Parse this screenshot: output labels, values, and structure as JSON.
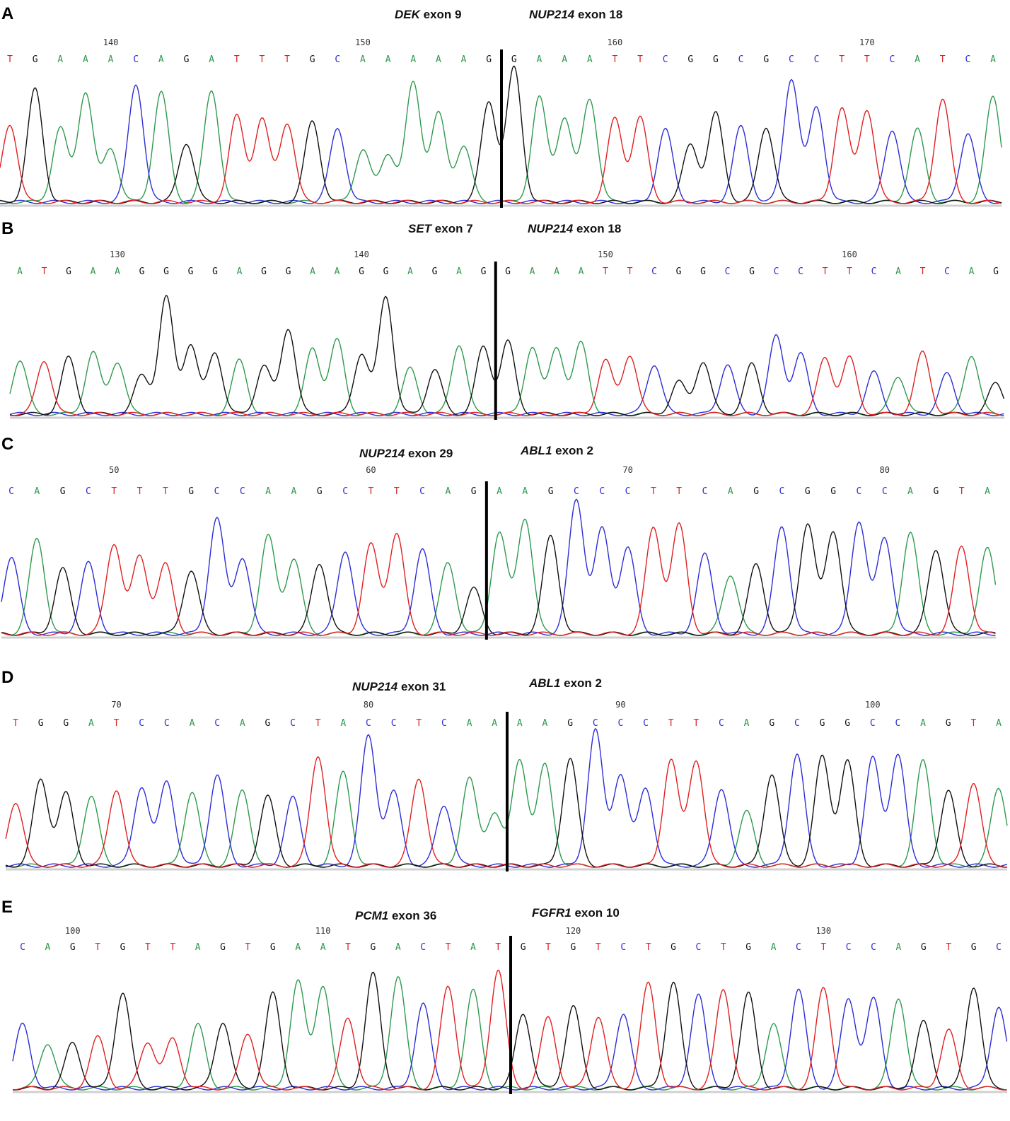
{
  "colors": {
    "A": "#2e9a4e",
    "C": "#2d2dd6",
    "G": "#111111",
    "T": "#e02020",
    "junction": "#000000",
    "baseline_shade": "#d0d0d0"
  },
  "chart_data": [
    {
      "type": "chromatogram",
      "panel": "A",
      "gene_left": "DEK",
      "exon_left": "exon 9",
      "gene_right": "NUP214",
      "exon_right": "exon 18",
      "first_position": 136,
      "position_ticks": [
        140,
        150,
        160,
        170
      ],
      "sequence": [
        "T",
        "G",
        "A",
        "A",
        "A",
        "C",
        "A",
        "G",
        "A",
        "T",
        "T",
        "T",
        "G",
        "C",
        "A",
        "A",
        "A",
        "A",
        "A",
        "G",
        "G",
        "A",
        "A",
        "A",
        "T",
        "T",
        "C",
        "G",
        "G",
        "C",
        "G",
        "C",
        "C",
        "T",
        "T",
        "C",
        "A",
        "T",
        "C",
        "A"
      ],
      "junction_after_index": 19,
      "peak_heights": [
        0.58,
        0.84,
        0.55,
        0.82,
        0.4,
        0.88,
        0.82,
        0.44,
        0.83,
        0.64,
        0.62,
        0.59,
        0.6,
        0.55,
        0.39,
        0.36,
        0.89,
        0.66,
        0.42,
        0.75,
        1.0,
        0.78,
        0.63,
        0.77,
        0.62,
        0.63,
        0.54,
        0.43,
        0.66,
        0.56,
        0.56,
        0.92,
        0.71,
        0.7,
        0.69,
        0.54,
        0.54,
        0.77,
        0.51,
        0.78
      ]
    },
    {
      "type": "chromatogram",
      "panel": "B",
      "gene_left": "SET",
      "exon_left": "exon 7",
      "gene_right": "NUP214",
      "exon_right": "exon 18",
      "first_position": 126,
      "position_ticks": [
        130,
        140,
        150,
        160
      ],
      "sequence": [
        "A",
        "T",
        "G",
        "A",
        "A",
        "G",
        "G",
        "G",
        "G",
        "A",
        "G",
        "G",
        "A",
        "A",
        "G",
        "G",
        "A",
        "G",
        "A",
        "G",
        "G",
        "A",
        "A",
        "A",
        "T",
        "T",
        "C",
        "G",
        "G",
        "C",
        "G",
        "C",
        "C",
        "T",
        "T",
        "C",
        "A",
        "T",
        "C",
        "A",
        "G"
      ],
      "junction_after_index": 19,
      "peak_heights": [
        0.4,
        0.4,
        0.42,
        0.46,
        0.39,
        0.29,
        0.87,
        0.52,
        0.46,
        0.4,
        0.36,
        0.64,
        0.49,
        0.55,
        0.45,
        0.88,
        0.34,
        0.33,
        0.52,
        0.5,
        0.54,
        0.5,
        0.5,
        0.53,
        0.4,
        0.44,
        0.37,
        0.24,
        0.39,
        0.37,
        0.37,
        0.58,
        0.45,
        0.42,
        0.42,
        0.31,
        0.28,
        0.46,
        0.3,
        0.44,
        0.23
      ]
    },
    {
      "type": "chromatogram",
      "panel": "C",
      "gene_left": "NUP214",
      "exon_left": "exon 29",
      "gene_right": "ABL1",
      "exon_right": "exon 2",
      "first_position": 46,
      "position_ticks": [
        50,
        60,
        70,
        80
      ],
      "sequence": [
        "C",
        "A",
        "G",
        "C",
        "T",
        "T",
        "T",
        "G",
        "C",
        "C",
        "A",
        "A",
        "G",
        "C",
        "T",
        "T",
        "C",
        "A",
        "G",
        "A",
        "A",
        "G",
        "C",
        "C",
        "C",
        "T",
        "T",
        "C",
        "A",
        "G",
        "C",
        "G",
        "G",
        "C",
        "C",
        "A",
        "G",
        "T",
        "A"
      ],
      "junction_after_index": 18,
      "peak_heights": [
        0.54,
        0.67,
        0.46,
        0.5,
        0.64,
        0.55,
        0.49,
        0.45,
        0.82,
        0.54,
        0.69,
        0.53,
        0.5,
        0.59,
        0.63,
        0.71,
        0.6,
        0.5,
        0.32,
        0.72,
        0.82,
        0.69,
        0.95,
        0.74,
        0.61,
        0.75,
        0.77,
        0.56,
        0.42,
        0.49,
        0.76,
        0.78,
        0.73,
        0.8,
        0.68,
        0.72,
        0.6,
        0.62,
        0.6
      ]
    },
    {
      "type": "chromatogram",
      "panel": "D",
      "gene_left": "NUP214",
      "exon_left": "exon 31",
      "gene_right": "ABL1",
      "exon_right": "exon 2",
      "first_position": 66,
      "position_ticks": [
        70,
        80,
        90,
        100
      ],
      "sequence": [
        "T",
        "G",
        "G",
        "A",
        "T",
        "C",
        "C",
        "A",
        "C",
        "A",
        "G",
        "C",
        "T",
        "A",
        "C",
        "C",
        "T",
        "C",
        "A",
        "A",
        "A",
        "A",
        "G",
        "C",
        "C",
        "C",
        "T",
        "T",
        "C",
        "A",
        "G",
        "C",
        "G",
        "G",
        "C",
        "C",
        "A",
        "G",
        "T",
        "A"
      ],
      "junction_after_index": 19,
      "peak_heights": [
        0.45,
        0.61,
        0.51,
        0.49,
        0.54,
        0.56,
        0.6,
        0.52,
        0.64,
        0.53,
        0.49,
        0.48,
        0.78,
        0.66,
        0.92,
        0.52,
        0.62,
        0.43,
        0.62,
        0.38,
        0.75,
        0.71,
        0.76,
        0.96,
        0.65,
        0.55,
        0.75,
        0.75,
        0.55,
        0.38,
        0.65,
        0.79,
        0.77,
        0.74,
        0.76,
        0.79,
        0.74,
        0.53,
        0.59,
        0.55
      ]
    },
    {
      "type": "chromatogram",
      "panel": "E",
      "gene_left": "PCM1",
      "exon_left": "exon 36",
      "gene_right": "FGFR1",
      "exon_right": "exon 10",
      "first_position": 98,
      "position_ticks": [
        100,
        110,
        120,
        130
      ],
      "sequence": [
        "C",
        "A",
        "G",
        "T",
        "G",
        "T",
        "T",
        "A",
        "G",
        "T",
        "G",
        "A",
        "A",
        "T",
        "G",
        "A",
        "C",
        "T",
        "A",
        "T",
        "G",
        "T",
        "G",
        "T",
        "C",
        "T",
        "G",
        "C",
        "T",
        "G",
        "A",
        "C",
        "T",
        "C",
        "C",
        "A",
        "G",
        "T",
        "G",
        "C"
      ],
      "junction_after_index": 19,
      "peak_heights": [
        0.45,
        0.32,
        0.32,
        0.36,
        0.68,
        0.33,
        0.35,
        0.45,
        0.47,
        0.39,
        0.67,
        0.76,
        0.73,
        0.5,
        0.81,
        0.79,
        0.6,
        0.72,
        0.69,
        0.84,
        0.53,
        0.5,
        0.58,
        0.51,
        0.53,
        0.74,
        0.75,
        0.66,
        0.7,
        0.67,
        0.46,
        0.7,
        0.71,
        0.63,
        0.63,
        0.64,
        0.47,
        0.41,
        0.72,
        0.58
      ]
    }
  ]
}
